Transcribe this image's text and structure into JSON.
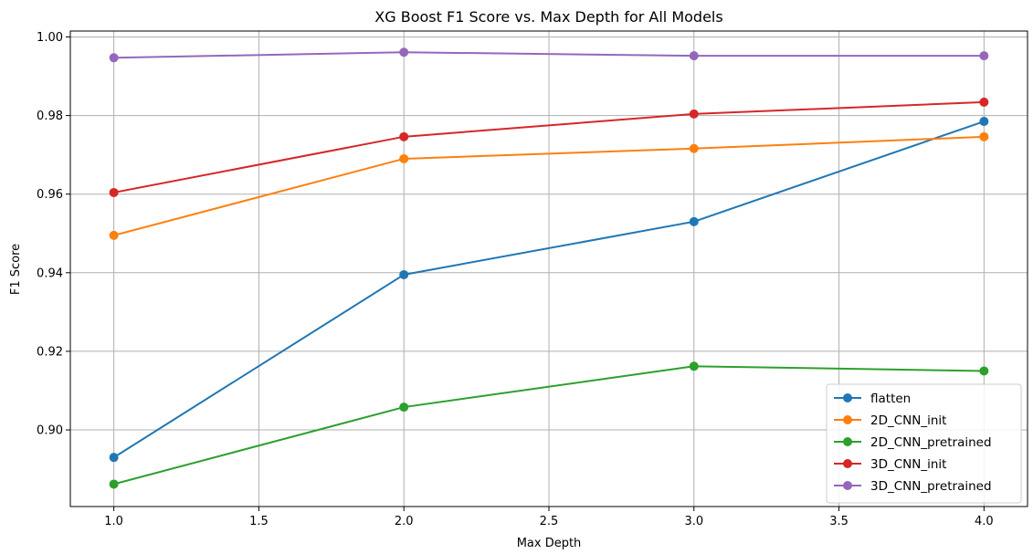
{
  "chart_data": {
    "type": "line",
    "title": "XG Boost F1 Score vs. Max Depth for All Models",
    "xlabel": "Max Depth",
    "ylabel": "F1 Score",
    "x": [
      1.0,
      2.0,
      3.0,
      4.0
    ],
    "xlim": [
      0.85,
      4.15
    ],
    "ylim": [
      0.8805,
      1.0015
    ],
    "xticks": [
      1.0,
      1.5,
      2.0,
      2.5,
      3.0,
      3.5,
      4.0
    ],
    "xtick_labels": [
      "1.0",
      "1.5",
      "2.0",
      "2.5",
      "3.0",
      "3.5",
      "4.0"
    ],
    "yticks": [
      0.9,
      0.92,
      0.94,
      0.96,
      0.98,
      1.0
    ],
    "ytick_labels": [
      "0.90",
      "0.92",
      "0.94",
      "0.96",
      "0.98",
      "1.00"
    ],
    "grid": true,
    "legend_position": "lower-right",
    "marker": "circle",
    "series": [
      {
        "name": "flatten",
        "color": "#1f77b4",
        "values": [
          0.893,
          0.9395,
          0.953,
          0.9785
        ]
      },
      {
        "name": "2D_CNN_init",
        "color": "#ff7f0e",
        "values": [
          0.9495,
          0.969,
          0.9716,
          0.9746
        ]
      },
      {
        "name": "2D_CNN_pretrained",
        "color": "#2ca02c",
        "values": [
          0.8862,
          0.9058,
          0.9162,
          0.915
        ]
      },
      {
        "name": "3D_CNN_init",
        "color": "#d62728",
        "values": [
          0.9604,
          0.9746,
          0.9804,
          0.9834
        ]
      },
      {
        "name": "3D_CNN_pretrained",
        "color": "#9467bd",
        "values": [
          0.9947,
          0.9961,
          0.9952,
          0.9952
        ]
      }
    ]
  }
}
